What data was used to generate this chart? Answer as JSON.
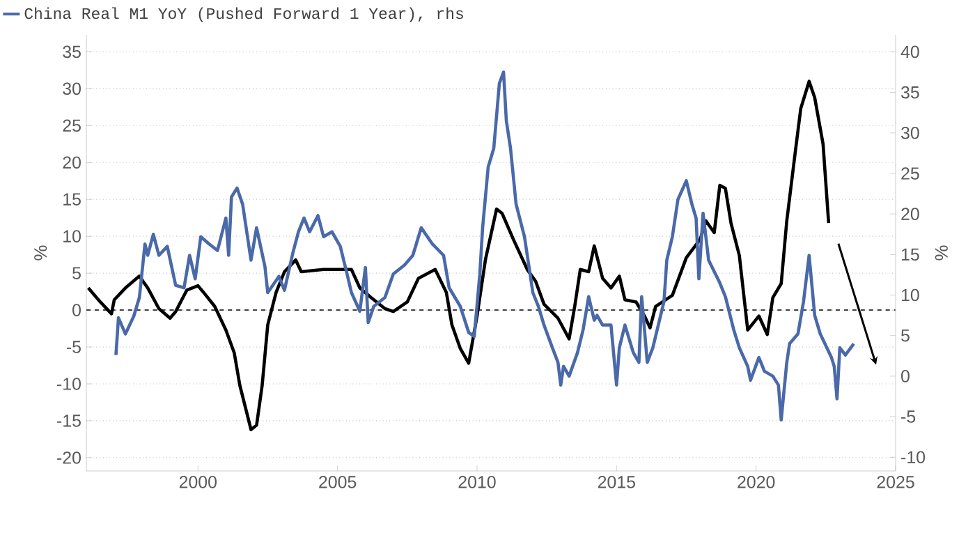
{
  "chart_data": {
    "type": "line",
    "xlim": [
      1996,
      2025
    ],
    "xticks": [
      2000,
      2005,
      2010,
      2015,
      2020,
      2025
    ],
    "ylim": [
      -21.8,
      37.3
    ],
    "yticks": [
      -20,
      -15,
      -10,
      -5,
      0,
      5,
      10,
      15,
      20,
      25,
      30,
      35
    ],
    "y2lim": [
      -11.7,
      42.1
    ],
    "y2ticks": [
      -10,
      -5,
      0,
      5,
      10,
      15,
      20,
      25,
      30,
      35,
      40
    ],
    "ylabel": "%",
    "y2label": "%",
    "grid": "y",
    "legend": "top left",
    "line_style": "solid",
    "ref_lines": [
      {
        "axis": "y",
        "value": 0,
        "line_style": "dashed",
        "color": "#404040"
      }
    ],
    "series": [
      {
        "color": "#000000",
        "x": [
          1996.07,
          1996.5,
          1996.9,
          1997.0,
          1997.4,
          1997.9,
          1998.2,
          1998.6,
          1999.0,
          1999.2,
          1999.6,
          2000.0,
          2000.2,
          2000.6,
          2001.0,
          2001.3,
          2001.5,
          2001.9,
          2002.1,
          2002.3,
          2002.5,
          2002.8,
          2003.1,
          2003.5,
          2003.7,
          2004.5,
          2005.5,
          2005.8,
          2006.2,
          2006.7,
          2007.0,
          2007.5,
          2007.9,
          2008.5,
          2008.9,
          2009.1,
          2009.4,
          2009.7,
          2010.0,
          2010.3,
          2010.7,
          2010.9,
          2011.3,
          2011.8,
          2012.1,
          2012.4,
          2012.9,
          2013.3,
          2013.5,
          2013.7,
          2014.0,
          2014.2,
          2014.5,
          2014.8,
          2015.1,
          2015.3,
          2015.7,
          2016.0,
          2016.2,
          2016.4,
          2017.0,
          2017.5,
          2018.0,
          2018.2,
          2018.5,
          2018.7,
          2018.9,
          2019.1,
          2019.4,
          2019.7,
          2020.1,
          2020.4,
          2020.6,
          2020.9,
          2021.1,
          2021.4,
          2021.6,
          2021.9,
          2022.1,
          2022.4,
          2022.6
        ],
        "values": [
          3.0,
          1.1,
          -0.5,
          1.4,
          3.0,
          4.6,
          3.0,
          0.2,
          -1.1,
          -0.2,
          2.7,
          3.3,
          2.4,
          0.5,
          -2.7,
          -5.8,
          -10.2,
          -16.2,
          -15.6,
          -10.2,
          -2.0,
          2.4,
          5.2,
          6.8,
          5.2,
          5.5,
          5.5,
          3.0,
          1.7,
          0.2,
          -0.2,
          1.1,
          4.3,
          5.5,
          2.4,
          -2.0,
          -5.2,
          -7.2,
          -0.8,
          6.8,
          13.7,
          13.1,
          9.6,
          5.5,
          3.9,
          0.8,
          -1.1,
          -3.9,
          0.5,
          5.5,
          5.2,
          8.7,
          4.3,
          3.0,
          4.6,
          1.4,
          1.1,
          -0.8,
          -2.4,
          0.5,
          2.0,
          7.1,
          9.6,
          12.1,
          10.5,
          16.9,
          16.5,
          11.8,
          7.4,
          -2.7,
          -0.8,
          -3.3,
          1.7,
          3.6,
          12.1,
          21.3,
          27.3,
          31.0,
          28.8,
          22.5,
          11.8
        ]
      },
      {
        "name": "China Real M1 YoY (Pushed Forward 1 Year), rhs",
        "color": "#4a69a8",
        "axis": "y2",
        "x": [
          1997.06,
          1997.15,
          1997.4,
          1997.7,
          1997.9,
          1998.1,
          1998.2,
          1998.4,
          1998.6,
          1998.9,
          1999.2,
          1999.5,
          1999.7,
          1999.9,
          2000.1,
          2000.4,
          2000.7,
          2001.0,
          2001.1,
          2001.2,
          2001.4,
          2001.6,
          2001.9,
          2002.1,
          2002.4,
          2002.5,
          2002.9,
          2003.1,
          2003.4,
          2003.6,
          2003.8,
          2004.0,
          2004.3,
          2004.5,
          2004.8,
          2005.1,
          2005.3,
          2005.5,
          2005.8,
          2006.0,
          2006.1,
          2006.3,
          2006.7,
          2007.0,
          2007.4,
          2007.7,
          2008.0,
          2008.4,
          2008.8,
          2009.0,
          2009.4,
          2009.7,
          2009.9,
          2010.1,
          2010.2,
          2010.4,
          2010.6,
          2010.7,
          2010.8,
          2010.95,
          2011.05,
          2011.2,
          2011.4,
          2011.7,
          2012.0,
          2012.2,
          2012.4,
          2012.7,
          2012.9,
          2013.0,
          2013.1,
          2013.3,
          2013.6,
          2013.8,
          2014.0,
          2014.2,
          2014.3,
          2014.5,
          2014.8,
          2015.0,
          2015.1,
          2015.3,
          2015.6,
          2015.8,
          2015.9,
          2016.1,
          2016.3,
          2016.7,
          2016.8,
          2017.0,
          2017.2,
          2017.5,
          2017.7,
          2017.85,
          2017.95,
          2018.1,
          2018.3,
          2018.7,
          2018.9,
          2019.2,
          2019.4,
          2019.7,
          2019.8,
          2020.1,
          2020.3,
          2020.6,
          2020.8,
          2020.9,
          2021.1,
          2021.2,
          2021.5,
          2021.7,
          2021.9,
          2022.1,
          2022.3,
          2022.7,
          2022.8,
          2022.9,
          2023.0,
          2023.2,
          2023.5
        ],
        "values": [
          2.6,
          7.2,
          5.2,
          7.4,
          9.7,
          16.3,
          14.9,
          17.5,
          14.9,
          16.0,
          11.2,
          10.9,
          14.9,
          12.0,
          17.2,
          16.3,
          15.5,
          19.5,
          14.9,
          22.1,
          23.2,
          21.2,
          14.3,
          18.3,
          13.5,
          10.3,
          12.3,
          10.6,
          15.2,
          17.8,
          19.5,
          17.8,
          19.8,
          17.2,
          17.8,
          16.0,
          13.2,
          10.3,
          8.0,
          13.4,
          6.6,
          8.6,
          9.7,
          12.6,
          13.7,
          14.9,
          18.3,
          16.3,
          14.9,
          10.9,
          8.6,
          5.4,
          4.9,
          12.6,
          18.3,
          25.8,
          28.1,
          32.1,
          36.1,
          37.5,
          31.5,
          28.1,
          21.2,
          17.2,
          10.3,
          8.6,
          6.3,
          3.5,
          1.7,
          -1.1,
          1.2,
          0,
          2.9,
          5.7,
          9.8,
          6.9,
          7.5,
          6.3,
          6.3,
          -1.1,
          3.5,
          6.3,
          2.9,
          1.7,
          9.8,
          1.7,
          3.5,
          9.2,
          14.3,
          17.2,
          21.8,
          24.1,
          21.2,
          19.5,
          12.0,
          20.1,
          14.3,
          11.5,
          9.8,
          5.7,
          3.5,
          1.2,
          -0.5,
          2.3,
          0.6,
          0,
          -1.1,
          -5.4,
          1.7,
          4.0,
          5.2,
          9.2,
          14.9,
          7.5,
          5.2,
          2.3,
          1.2,
          -2.8,
          3.5,
          2.6,
          4.0
        ]
      }
    ]
  }
}
